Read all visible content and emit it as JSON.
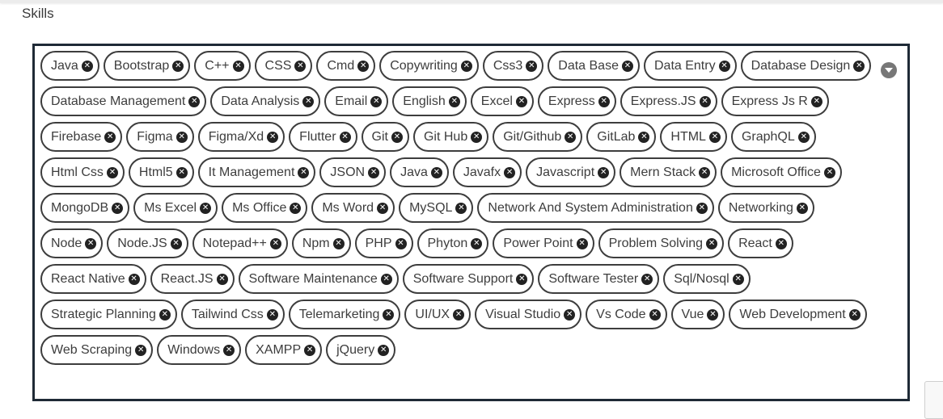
{
  "section_label": "Skills",
  "icons": {
    "remove": "close-circle-icon",
    "dropdown": "chevron-down-icon"
  },
  "chips": [
    "Java",
    "Bootstrap",
    "C++",
    "CSS",
    "Cmd",
    "Copywriting",
    "Css3",
    "Data Base",
    "Data Entry",
    "Database Design",
    "Database Management",
    "Data Analysis",
    "Email",
    "English",
    "Excel",
    "Express",
    "Express.JS",
    "Express Js R",
    "Firebase",
    "Figma",
    "Figma/Xd",
    "Flutter",
    "Git",
    "Git Hub",
    "Git/Github",
    "GitLab",
    "HTML",
    "GraphQL",
    "Html Css",
    "Html5",
    "It Management",
    "JSON",
    "Java",
    "Javafx",
    "Javascript",
    "Mern Stack",
    "Microsoft Office",
    "MongoDB",
    "Ms Excel",
    "Ms Office",
    "Ms Word",
    "MySQL",
    "Network And System Administration",
    "Networking",
    "Node",
    "Node.JS",
    "Notepad++",
    "Npm",
    "PHP",
    "Phyton",
    "Power Point",
    "Problem Solving",
    "React",
    "React Native",
    "React.JS",
    "Software Maintenance",
    "Software Support",
    "Software Tester",
    "Sql/Nosql",
    "Strategic Planning",
    "Tailwind Css",
    "Telemarketing",
    "UI/UX",
    "Visual Studio",
    "Vs Code",
    "Vue",
    "Web Development",
    "Web Scraping",
    "Windows",
    "XAMPP",
    "jQuery"
  ]
}
